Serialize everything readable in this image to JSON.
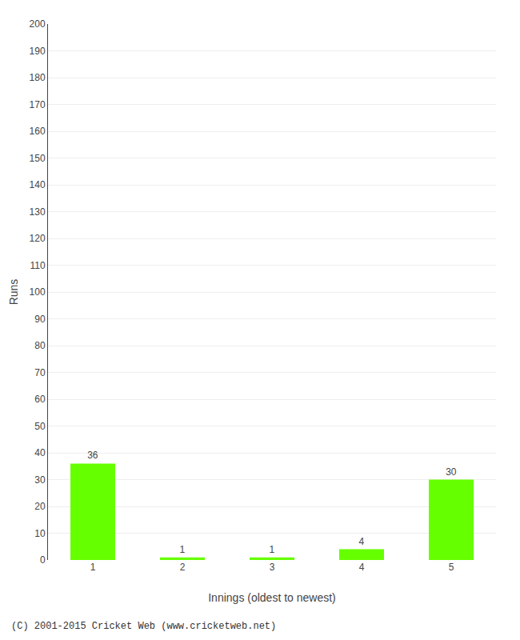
{
  "chart_data": {
    "type": "bar",
    "categories": [
      "1",
      "2",
      "3",
      "4",
      "5"
    ],
    "values": [
      36,
      1,
      1,
      4,
      30
    ],
    "color": "#66ff00",
    "xlabel": "Innings (oldest to newest)",
    "ylabel": "Runs",
    "ylim": [
      0,
      200
    ],
    "yticks": [
      0,
      10,
      20,
      30,
      40,
      50,
      60,
      70,
      80,
      90,
      100,
      110,
      120,
      130,
      140,
      150,
      160,
      170,
      180,
      190,
      200
    ],
    "grid": true,
    "data_labels": true,
    "annotations": [
      "(C) 2001-2015 Cricket Web (www.cricketweb.net)"
    ]
  }
}
